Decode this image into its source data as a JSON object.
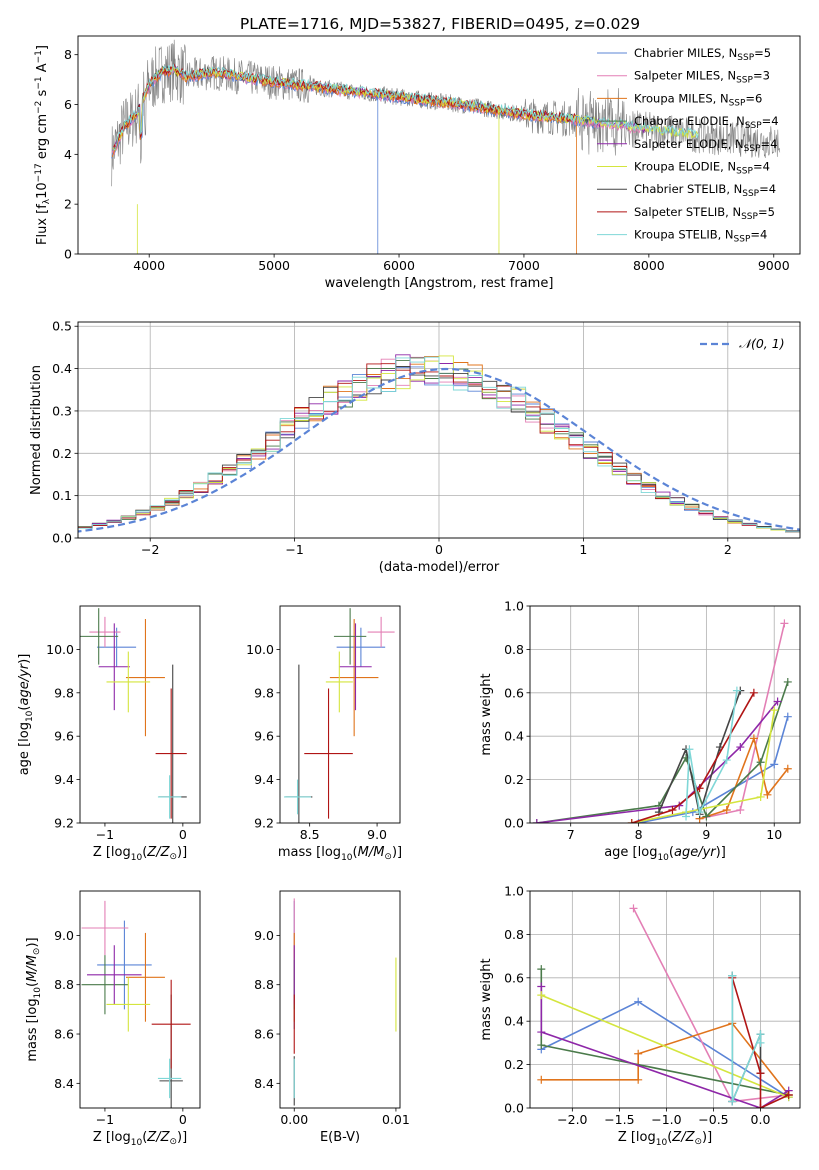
{
  "figure_title": "PLATE=1716, MJD=53827, FIBERID=0495, z=0.029",
  "colors": {
    "chabrier_miles": "#5b84d6",
    "salpeter_miles": "#e37fb5",
    "kroupa_miles": "#e0741c",
    "chabrier_elodie": "#4a7a4a",
    "salpeter_elodie": "#8e27a8",
    "kroupa_elodie": "#d4e53e",
    "chabrier_stelib": "#444444",
    "salpeter_stelib": "#b01515",
    "kroupa_stelib": "#7fd7d7",
    "data": "#808080",
    "normal": "#5b84d6",
    "grid": "#b0b0b0"
  },
  "chart_data": [
    {
      "id": "spectrum",
      "type": "line",
      "title": "PLATE=1716, MJD=53827, FIBERID=0495, z=0.029",
      "xlabel": "wavelength [Angstrom, rest frame]",
      "ylabel": "Flux [f",
      "xlim": [
        3430,
        9210
      ],
      "ylim": [
        0,
        8.75
      ],
      "xticks": [
        "4000",
        "5000",
        "6000",
        "7000",
        "8000",
        "9000"
      ],
      "yticks": [
        "0",
        "2",
        "4",
        "6",
        "8"
      ],
      "grid": false,
      "legend_position": "top-right",
      "legend": [
        {
          "model": "Chabrier MILES",
          "n": "=5"
        },
        {
          "model": "Salpeter MILES",
          "n": "=3"
        },
        {
          "model": "Kroupa MILES",
          "n": "=6"
        },
        {
          "model": "Chabrier ELODIE",
          "n": "=4"
        },
        {
          "model": "Salpeter ELODIE",
          "n": "=4"
        },
        {
          "model": "Kroupa ELODIE",
          "n": "=4"
        },
        {
          "model": "Chabrier STELIB",
          "n": "=4"
        },
        {
          "model": "Salpeter STELIB",
          "n": "=5"
        },
        {
          "model": "Kroupa STELIB",
          "n": "=4"
        }
      ],
      "continuum": {
        "x": [
          3700,
          3800,
          3900,
          4000,
          4100,
          4200,
          4300,
          4500,
          5000,
          5500,
          6000,
          6500,
          7000,
          7400,
          8000,
          8500,
          9000
        ],
        "y": [
          4.0,
          5.1,
          5.6,
          6.8,
          7.3,
          7.4,
          7.1,
          7.3,
          6.9,
          6.6,
          6.3,
          6.0,
          5.6,
          5.4,
          5.0,
          4.7,
          4.5
        ]
      }
    },
    {
      "id": "residuals",
      "type": "step",
      "xlabel": "(data-model)/error",
      "ylabel": "Normed distribution",
      "xlim": [
        -2.5,
        2.5
      ],
      "ylim": [
        0,
        0.51
      ],
      "xticks": [
        "−2",
        "−1",
        "0",
        "1",
        "2"
      ],
      "yticks": [
        "0.0",
        "0.1",
        "0.2",
        "0.3",
        "0.4",
        "0.5"
      ],
      "grid": true,
      "legend_position": "top-right",
      "legend": [
        "𝒩(0, 1)"
      ],
      "bin_width": 0.1
    },
    {
      "id": "age_vs_Z",
      "type": "errorbar",
      "xlabel": "Z [log",
      "ylabel": "age  [log",
      "xlim": [
        -1.32,
        0.22
      ],
      "ylim": [
        9.2,
        10.2
      ],
      "xticks": [
        "−1",
        "0"
      ],
      "yticks": [
        "9.2",
        "9.4",
        "9.6",
        "9.8",
        "10.0"
      ],
      "points": [
        {
          "x": -0.85,
          "xerr": 0.25,
          "y": 10.01,
          "yerr": 0.09
        },
        {
          "x": -1.0,
          "xerr": 0.2,
          "y": 10.08,
          "yerr": 0.07
        },
        {
          "x": -0.48,
          "xerr": 0.25,
          "y": 9.87,
          "yerr": 0.27
        },
        {
          "x": -1.08,
          "xerr": 0.25,
          "y": 10.06,
          "yerr": 0.13
        },
        {
          "x": -0.88,
          "xerr": 0.2,
          "y": 9.92,
          "yerr": 0.2
        },
        {
          "x": -0.7,
          "xerr": 0.28,
          "y": 9.85,
          "yerr": 0.14
        },
        {
          "x": -0.13,
          "xerr": 0.18,
          "y": 9.32,
          "yerr": 0.61
        },
        {
          "x": -0.15,
          "xerr": 0.2,
          "y": 9.52,
          "yerr": 0.3
        },
        {
          "x": -0.17,
          "xerr": 0.15,
          "y": 9.32,
          "yerr": 0.1
        }
      ]
    },
    {
      "id": "age_vs_mass",
      "type": "errorbar",
      "xlabel": "mass [log",
      "ylabel": "",
      "xlim": [
        8.28,
        9.17
      ],
      "ylim": [
        9.2,
        10.2
      ],
      "xticks": [
        "8.5",
        "9.0"
      ],
      "yticks": [
        "9.2",
        "9.4",
        "9.6",
        "9.8",
        "10.0"
      ],
      "points": [
        {
          "x": 8.88,
          "xerr": 0.18,
          "y": 10.01,
          "yerr": 0.09
        },
        {
          "x": 9.03,
          "xerr": 0.1,
          "y": 10.08,
          "yerr": 0.07
        },
        {
          "x": 8.83,
          "xerr": 0.18,
          "y": 9.87,
          "yerr": 0.27
        },
        {
          "x": 8.8,
          "xerr": 0.12,
          "y": 10.06,
          "yerr": 0.13
        },
        {
          "x": 8.84,
          "xerr": 0.12,
          "y": 9.92,
          "yerr": 0.2
        },
        {
          "x": 8.72,
          "xerr": 0.1,
          "y": 9.85,
          "yerr": 0.14
        },
        {
          "x": 8.42,
          "xerr": 0.1,
          "y": 9.32,
          "yerr": 0.61
        },
        {
          "x": 8.64,
          "xerr": 0.18,
          "y": 9.52,
          "yerr": 0.3
        },
        {
          "x": 8.41,
          "xerr": 0.1,
          "y": 9.32,
          "yerr": 0.08
        }
      ]
    },
    {
      "id": "weight_vs_age",
      "type": "line",
      "xlabel": "age  [log",
      "ylabel": "mass weight",
      "xlim": [
        6.4,
        10.38
      ],
      "ylim": [
        0,
        1.0
      ],
      "xticks": [
        "7",
        "8",
        "9",
        "10"
      ],
      "yticks": [
        "0.0",
        "0.2",
        "0.4",
        "0.6",
        "0.8",
        "1.0"
      ],
      "grid": true,
      "series": [
        {
          "x": [
            8.0,
            8.8,
            10.0,
            10.2
          ],
          "y": [
            0.0,
            0.05,
            0.27,
            0.49
          ]
        },
        {
          "x": [
            8.9,
            9.5,
            10.15
          ],
          "y": [
            0.02,
            0.06,
            0.92
          ]
        },
        {
          "x": [
            8.9,
            9.3,
            9.7,
            9.9,
            10.2
          ],
          "y": [
            0.02,
            0.06,
            0.39,
            0.13,
            0.25
          ]
        },
        {
          "x": [
            6.5,
            8.3,
            8.7,
            9.0,
            9.8,
            10.2
          ],
          "y": [
            0.0,
            0.08,
            0.3,
            0.03,
            0.28,
            0.65
          ]
        },
        {
          "x": [
            6.5,
            8.6,
            9.5,
            10.05
          ],
          "y": [
            0.0,
            0.08,
            0.35,
            0.56
          ]
        },
        {
          "x": [
            7.9,
            8.7,
            9.8,
            10.0
          ],
          "y": [
            0.0,
            0.05,
            0.12,
            0.52
          ]
        },
        {
          "x": [
            8.3,
            8.7,
            8.9,
            9.2,
            9.5
          ],
          "y": [
            0.05,
            0.34,
            0.04,
            0.35,
            0.61
          ]
        },
        {
          "x": [
            7.9,
            8.5,
            8.9,
            9.7
          ],
          "y": [
            0.0,
            0.06,
            0.16,
            0.6
          ]
        },
        {
          "x": [
            8.7,
            8.75,
            8.9,
            9.3,
            9.45
          ],
          "y": [
            0.03,
            0.34,
            0.05,
            0.29,
            0.61
          ]
        }
      ]
    },
    {
      "id": "mass_vs_Z",
      "type": "errorbar",
      "xlabel": "Z [log",
      "ylabel": "mass [log",
      "xlim": [
        -1.32,
        0.22
      ],
      "ylim": [
        8.3,
        9.18
      ],
      "xticks": [
        "−1",
        "0"
      ],
      "yticks": [
        "8.4",
        "8.6",
        "8.8",
        "9.0"
      ],
      "points": [
        {
          "x": -0.75,
          "xerr": 0.35,
          "y": 8.88,
          "yerr": 0.18
        },
        {
          "x": -1.0,
          "xerr": 0.3,
          "y": 9.03,
          "yerr": 0.11
        },
        {
          "x": -0.48,
          "xerr": 0.25,
          "y": 8.83,
          "yerr": 0.18
        },
        {
          "x": -1.0,
          "xerr": 0.3,
          "y": 8.8,
          "yerr": 0.12
        },
        {
          "x": -0.88,
          "xerr": 0.35,
          "y": 8.84,
          "yerr": 0.12
        },
        {
          "x": -0.7,
          "xerr": 0.28,
          "y": 8.72,
          "yerr": 0.11
        },
        {
          "x": -0.15,
          "xerr": 0.15,
          "y": 8.41,
          "yerr": 0.35
        },
        {
          "x": -0.15,
          "xerr": 0.25,
          "y": 8.64,
          "yerr": 0.18
        },
        {
          "x": -0.17,
          "xerr": 0.15,
          "y": 8.42,
          "yerr": 0.08
        }
      ]
    },
    {
      "id": "mass_vs_EBV",
      "type": "errorbar",
      "xlabel": "E(B-V)",
      "ylabel": "",
      "xlim": [
        -0.0014,
        0.0104
      ],
      "ylim": [
        8.3,
        9.18
      ],
      "xticks": [
        "0.00",
        "0.01"
      ],
      "yticks": [
        "8.4",
        "8.6",
        "8.8",
        "9.0"
      ],
      "points": [
        {
          "x": 0.0,
          "y": 8.88,
          "yerr": 0.26
        },
        {
          "x": 0.0,
          "y": 9.03,
          "yerr": 0.12
        },
        {
          "x": 0.0,
          "y": 8.83,
          "yerr": 0.18
        },
        {
          "x": 0.0,
          "y": 8.8,
          "yerr": 0.1
        },
        {
          "x": 0.0,
          "y": 8.84,
          "yerr": 0.12
        },
        {
          "x": 0.01,
          "y": 8.76,
          "yerr": 0.15
        },
        {
          "x": 0.0,
          "y": 8.41,
          "yerr": 0.1
        },
        {
          "x": 0.0,
          "y": 8.64,
          "yerr": 0.12
        },
        {
          "x": 0.0,
          "y": 8.42,
          "yerr": 0.08
        }
      ]
    },
    {
      "id": "weight_vs_Z",
      "type": "line",
      "xlabel": "Z [log",
      "ylabel": "mass weight",
      "xlim": [
        -2.45,
        0.42
      ],
      "ylim": [
        0,
        1.0
      ],
      "xticks": [
        "−2.0",
        "−1.5",
        "−1.0",
        "−0.5",
        "0.0"
      ],
      "yticks": [
        "0.0",
        "0.2",
        "0.4",
        "0.6",
        "0.8",
        "1.0"
      ],
      "grid": true,
      "series": [
        {
          "x": [
            -2.33,
            -1.3,
            0.3
          ],
          "y": [
            0.27,
            0.49,
            0.05
          ]
        },
        {
          "x": [
            -1.35,
            -0.3,
            0.3
          ],
          "y": [
            0.92,
            0.03,
            0.06
          ]
        },
        {
          "x": [
            -2.33,
            -1.3,
            -1.3,
            -0.3,
            0.3
          ],
          "y": [
            0.13,
            0.13,
            0.25,
            0.39,
            0.06
          ]
        },
        {
          "x": [
            -2.33,
            -2.33,
            0.3
          ],
          "y": [
            0.64,
            0.29,
            0.06
          ]
        },
        {
          "x": [
            -2.33,
            -2.33,
            0.0,
            0.3
          ],
          "y": [
            0.56,
            0.35,
            0.0,
            0.08
          ]
        },
        {
          "x": [
            -2.33,
            0.3
          ],
          "y": [
            0.52,
            0.05
          ]
        },
        {
          "x": [
            -0.3,
            -0.3,
            0.0,
            0.0
          ],
          "y": [
            0.61,
            0.03,
            0.34,
            0.16
          ]
        },
        {
          "x": [
            -0.3,
            0.0,
            0.0,
            0.3
          ],
          "y": [
            0.6,
            0.16,
            0.0,
            0.06
          ]
        },
        {
          "x": [
            -0.3,
            -0.3,
            0.0,
            0.0
          ],
          "y": [
            0.61,
            0.03,
            0.34,
            0.3
          ]
        }
      ]
    }
  ]
}
